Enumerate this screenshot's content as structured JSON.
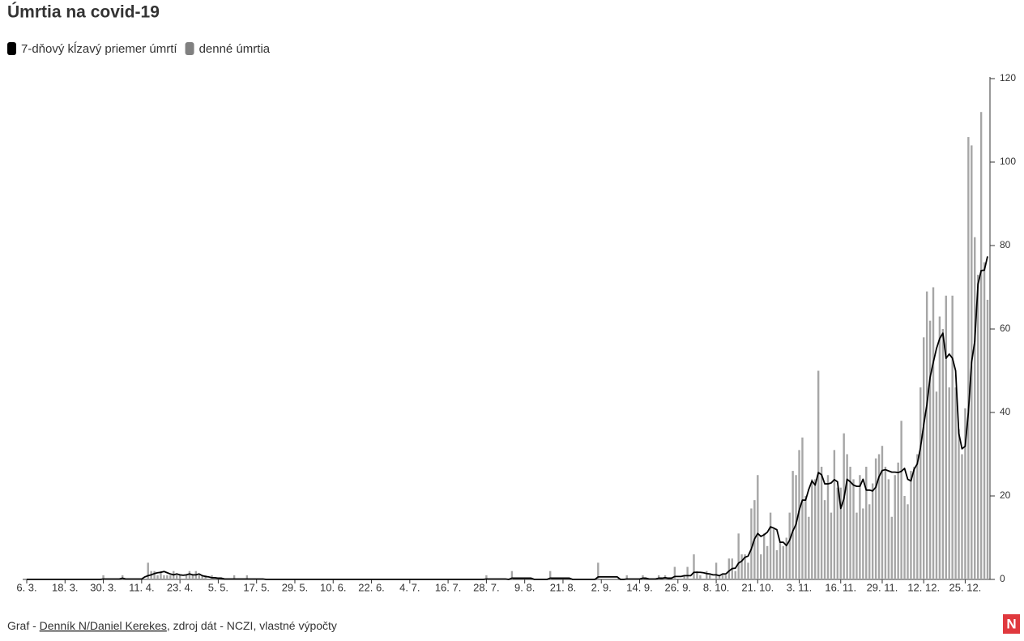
{
  "chart_data": {
    "type": "bar-line",
    "title": "Úmrtia na covid-19",
    "categories": [
      "6. 3.",
      null,
      null,
      null,
      null,
      null,
      null,
      null,
      null,
      null,
      null,
      null,
      "18. 3.",
      null,
      null,
      null,
      null,
      null,
      null,
      null,
      null,
      null,
      null,
      null,
      "30. 3.",
      null,
      null,
      null,
      null,
      null,
      null,
      null,
      null,
      null,
      null,
      null,
      "11. 4.",
      null,
      null,
      null,
      null,
      null,
      null,
      null,
      null,
      null,
      null,
      null,
      "23. 4.",
      null,
      null,
      null,
      null,
      null,
      null,
      null,
      null,
      null,
      null,
      null,
      "5. 5.",
      null,
      null,
      null,
      null,
      null,
      null,
      null,
      null,
      null,
      null,
      null,
      "17. 5.",
      null,
      null,
      null,
      null,
      null,
      null,
      null,
      null,
      null,
      null,
      null,
      "29. 5.",
      null,
      null,
      null,
      null,
      null,
      null,
      null,
      null,
      null,
      null,
      null,
      "10. 6.",
      null,
      null,
      null,
      null,
      null,
      null,
      null,
      null,
      null,
      null,
      null,
      "22. 6.",
      null,
      null,
      null,
      null,
      null,
      null,
      null,
      null,
      null,
      null,
      null,
      "4. 7.",
      null,
      null,
      null,
      null,
      null,
      null,
      null,
      null,
      null,
      null,
      null,
      "16. 7.",
      null,
      null,
      null,
      null,
      null,
      null,
      null,
      null,
      null,
      null,
      null,
      "28. 7.",
      null,
      null,
      null,
      null,
      null,
      null,
      null,
      null,
      null,
      null,
      null,
      "9. 8.",
      null,
      null,
      null,
      null,
      null,
      null,
      null,
      null,
      null,
      null,
      null,
      "21. 8.",
      null,
      null,
      null,
      null,
      null,
      null,
      null,
      null,
      null,
      null,
      null,
      "2. 9.",
      null,
      null,
      null,
      null,
      null,
      null,
      null,
      null,
      null,
      null,
      null,
      "14. 9.",
      null,
      null,
      null,
      null,
      null,
      null,
      null,
      null,
      null,
      null,
      null,
      "26. 9.",
      null,
      null,
      null,
      null,
      null,
      null,
      null,
      null,
      null,
      null,
      null,
      "8. 10.",
      null,
      null,
      null,
      null,
      null,
      null,
      null,
      null,
      null,
      null,
      null,
      null,
      "21. 10.",
      null,
      null,
      null,
      null,
      null,
      null,
      null,
      null,
      null,
      null,
      null,
      null,
      "3. 11.",
      null,
      null,
      null,
      null,
      null,
      null,
      null,
      null,
      null,
      null,
      null,
      null,
      "16. 11.",
      null,
      null,
      null,
      null,
      null,
      null,
      null,
      null,
      null,
      null,
      null,
      null,
      "29. 11.",
      null,
      null,
      null,
      null,
      null,
      null,
      null,
      null,
      null,
      null,
      null,
      null,
      "12. 12.",
      null,
      null,
      null,
      null,
      null,
      null,
      null,
      null,
      null,
      null,
      null,
      null,
      "25. 12.",
      null,
      null,
      null,
      null,
      null,
      null,
      null
    ],
    "series": [
      {
        "name": "7-dňový kĺzavý priemer úmrtí",
        "color": "#000000",
        "kind": "line",
        "values": [
          0,
          0,
          0,
          0,
          0,
          0,
          0,
          0,
          0,
          0,
          0,
          0,
          0,
          0,
          0,
          0,
          0,
          0,
          0,
          0,
          0,
          0,
          0,
          0,
          0.1,
          0.1,
          0.1,
          0.1,
          0.1,
          0.1,
          0.3,
          0.1,
          0.1,
          0.1,
          0.1,
          0.1,
          0.1,
          0.6,
          0.9,
          1.1,
          1.4,
          1.6,
          1.7,
          1.9,
          1.6,
          1.3,
          1.1,
          1.3,
          1.1,
          1,
          1.1,
          1.3,
          1.1,
          1.1,
          1.3,
          0.9,
          0.7,
          0.6,
          0.4,
          0.4,
          0.3,
          0.3,
          0.1,
          0.1,
          0.1,
          0.1,
          0.1,
          0.1,
          0.1,
          0.1,
          0.1,
          0.1,
          0.1,
          0.1,
          0.1,
          0,
          0,
          0,
          0,
          0,
          0,
          0,
          0,
          0,
          0,
          0,
          0,
          0,
          0,
          0,
          0,
          0,
          0,
          0,
          0,
          0,
          0,
          0,
          0,
          0,
          0,
          0,
          0,
          0,
          0,
          0,
          0,
          0,
          0,
          0,
          0,
          0,
          0,
          0,
          0,
          0,
          0,
          0,
          0,
          0,
          0,
          0,
          0,
          0,
          0,
          0,
          0,
          0,
          0,
          0,
          0,
          0,
          0,
          0,
          0,
          0,
          0,
          0,
          0,
          0,
          0,
          0,
          0,
          0,
          0.1,
          0.1,
          0.1,
          0.1,
          0.1,
          0.1,
          0.1,
          0,
          0.3,
          0.3,
          0.3,
          0.3,
          0.3,
          0.3,
          0.3,
          0,
          0,
          0,
          0,
          0,
          0.3,
          0.3,
          0.3,
          0.3,
          0.3,
          0.3,
          0.3,
          0,
          0,
          0,
          0,
          0,
          0,
          0,
          0,
          0.6,
          0.6,
          0.6,
          0.6,
          0.6,
          0.6,
          0.6,
          0,
          0,
          0.1,
          0.1,
          0.1,
          0.1,
          0.1,
          0.3,
          0.3,
          0.1,
          0.1,
          0.1,
          0.3,
          0.3,
          0.4,
          0.3,
          0.3,
          0.7,
          0.7,
          0.7,
          0.9,
          0.9,
          0.9,
          1.7,
          1.7,
          1.7,
          1.6,
          1.4,
          1.3,
          1.1,
          1.1,
          0.9,
          1.3,
          1.3,
          2,
          2.6,
          2.7,
          3.9,
          4.4,
          5.3,
          5.6,
          7.3,
          9.7,
          11,
          10.3,
          10.7,
          11.3,
          12.6,
          12.3,
          11.9,
          8.9,
          8.9,
          8.1,
          9.4,
          11.6,
          13.2,
          16.6,
          19,
          19,
          21.6,
          23.6,
          22.6,
          25.6,
          25.1,
          22.9,
          22.9,
          23.1,
          23.9,
          23.4,
          17,
          19.3,
          24,
          23.4,
          22.6,
          22.3,
          22.3,
          24,
          21.4,
          21.4,
          21.2,
          22.1,
          24.6,
          26.1,
          26.3,
          26,
          25.7,
          25.7,
          25.6,
          25.9,
          26.6,
          24,
          23.6,
          26.4,
          27.7,
          31.6,
          37,
          41.9,
          48.4,
          52,
          55.3,
          57.7,
          59,
          53,
          54,
          53,
          50,
          35,
          31.3,
          31.9,
          40.1,
          52,
          57.1,
          70.7,
          74,
          74.1,
          77.4
        ]
      },
      {
        "name": "denné úmrtia",
        "color": "#a6a6a6",
        "legend_color": "#808080",
        "kind": "bar",
        "values": [
          0,
          0,
          0,
          0,
          0,
          0,
          0,
          0,
          0,
          0,
          0,
          0,
          0,
          0,
          0,
          0,
          0,
          0,
          0,
          0,
          0,
          0,
          0,
          0,
          1,
          0,
          0,
          0,
          0,
          0,
          1,
          0,
          0,
          0,
          0,
          0,
          0,
          0,
          4,
          2,
          2,
          1,
          2,
          1,
          1,
          1,
          2,
          1,
          1,
          0,
          1,
          2,
          1,
          2,
          1,
          1,
          1,
          0,
          1,
          0,
          0,
          0,
          0,
          0,
          0,
          1,
          0,
          0,
          0,
          1,
          0,
          0,
          0,
          0,
          0,
          0,
          0,
          0,
          0,
          0,
          0,
          0,
          0,
          0,
          0,
          0,
          0,
          0,
          0,
          0,
          0,
          0,
          0,
          0,
          0,
          0,
          0,
          0,
          0,
          0,
          0,
          0,
          0,
          0,
          0,
          0,
          0,
          0,
          0,
          0,
          0,
          0,
          0,
          0,
          0,
          0,
          0,
          0,
          0,
          0,
          0,
          0,
          0,
          0,
          0,
          0,
          0,
          0,
          0,
          0,
          0,
          0,
          0,
          0,
          0,
          0,
          0,
          0,
          0,
          0,
          0,
          0,
          0,
          0,
          1,
          0,
          0,
          0,
          0,
          0,
          0,
          0,
          2,
          0,
          0,
          0,
          0,
          0,
          0,
          0,
          0,
          0,
          0,
          0,
          2,
          0,
          0,
          0,
          0,
          0,
          0,
          0,
          0,
          0,
          0,
          0,
          0,
          0,
          0,
          4,
          0,
          0,
          0,
          0,
          0,
          0,
          0,
          0,
          1,
          0,
          0,
          0,
          0,
          1,
          0,
          0,
          0,
          0,
          1,
          0,
          1,
          0,
          0,
          3,
          0,
          0,
          1,
          3,
          0,
          6,
          2,
          1,
          0,
          2,
          1,
          0,
          4,
          1,
          1,
          1,
          5,
          5,
          2,
          11,
          6,
          6,
          4,
          17,
          19,
          25,
          6,
          11,
          8,
          16,
          12,
          7,
          9,
          8,
          10,
          16,
          26,
          25,
          31,
          34,
          20,
          15,
          24,
          24,
          50,
          27,
          19,
          25,
          16,
          31,
          22,
          22,
          35,
          30,
          27,
          24,
          16,
          25,
          17,
          27,
          18,
          23,
          29,
          30,
          32,
          27,
          24,
          15,
          25,
          28,
          38,
          20,
          18,
          26,
          27,
          30,
          46,
          58,
          69,
          62,
          70,
          45,
          63,
          60,
          68,
          46,
          68,
          46,
          36,
          30,
          41,
          106,
          104,
          82,
          73,
          112,
          76,
          67
        ]
      }
    ],
    "ylim": [
      0,
      120
    ],
    "yticks": [
      0,
      20,
      40,
      60,
      80,
      100,
      120
    ],
    "y_axis_side": "right",
    "source": {
      "prefix": "Graf - ",
      "link": "Denník N/Daniel Kerekes",
      "suffix": ", zdroj dát - NCZI, vlastné výpočty"
    },
    "logo": "N"
  }
}
